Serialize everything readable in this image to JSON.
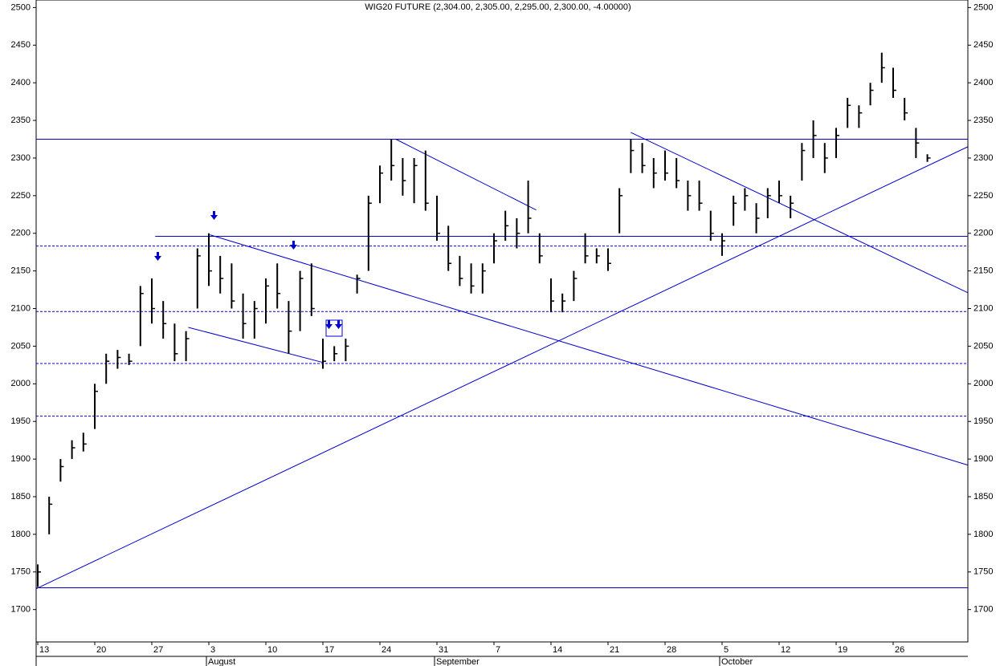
{
  "chart_data": {
    "type": "ohlc",
    "title": "WIG20 FUTURE (2,304.00, 2,305.00, 2,295.00, 2,300.00, -4.00000)",
    "color": "#000000",
    "line_color": "#0000cc",
    "x": [
      0,
      1,
      2,
      3,
      4,
      5,
      6,
      7,
      8,
      9,
      10,
      11,
      12,
      13,
      14,
      15,
      16,
      17,
      18,
      19,
      20,
      21,
      22,
      23,
      24,
      25,
      26,
      27,
      28,
      29,
      30,
      31,
      32,
      33,
      34,
      35,
      36,
      37,
      38,
      39,
      40,
      41,
      42,
      43,
      44,
      45,
      46,
      47,
      48,
      49,
      50,
      51,
      52,
      53,
      54,
      55,
      56,
      57,
      58,
      59,
      60,
      61,
      62,
      63,
      64,
      65,
      66,
      67,
      68,
      69,
      70,
      71,
      72,
      73,
      74,
      75,
      76,
      77,
      78
    ],
    "high": [
      1760,
      1850,
      1900,
      1925,
      1935,
      2000,
      2040,
      2045,
      2040,
      2130,
      2140,
      2110,
      2080,
      2070,
      2180,
      2200,
      2170,
      2160,
      2120,
      2110,
      2140,
      2160,
      2110,
      2150,
      2160,
      2060,
      2050,
      2060,
      2145,
      2250,
      2290,
      2325,
      2300,
      2300,
      2310,
      2250,
      2210,
      2170,
      2160,
      2160,
      2200,
      2230,
      2220,
      2270,
      2200,
      2140,
      2120,
      2150,
      2200,
      2180,
      2180,
      2260,
      2325,
      2320,
      2300,
      2310,
      2300,
      2270,
      2270,
      2230,
      2200,
      2250,
      2260,
      2240,
      2260,
      2270,
      2250,
      2320,
      2350,
      2320,
      2340,
      2380,
      2370,
      2400,
      2440,
      2420,
      2380,
      2340,
      2305
    ],
    "low": [
      1730,
      1800,
      1870,
      1900,
      1910,
      1940,
      2000,
      2020,
      2025,
      2050,
      2080,
      2060,
      2030,
      2030,
      2100,
      2130,
      2120,
      2100,
      2060,
      2060,
      2080,
      2100,
      2040,
      2070,
      2090,
      2020,
      2030,
      2030,
      2120,
      2150,
      2240,
      2270,
      2250,
      2240,
      2230,
      2190,
      2150,
      2130,
      2120,
      2120,
      2160,
      2190,
      2180,
      2200,
      2160,
      2095,
      2095,
      2110,
      2160,
      2160,
      2150,
      2200,
      2280,
      2280,
      2260,
      2270,
      2260,
      2230,
      2230,
      2190,
      2170,
      2210,
      2230,
      2200,
      2220,
      2240,
      2220,
      2270,
      2300,
      2280,
      2300,
      2340,
      2340,
      2370,
      2400,
      2380,
      2350,
      2300,
      2295
    ],
    "close": [
      1750,
      1840,
      1890,
      1915,
      1920,
      1990,
      2030,
      2035,
      2030,
      2120,
      2100,
      2080,
      2040,
      2060,
      2170,
      2150,
      2140,
      2110,
      2080,
      2100,
      2130,
      2120,
      2070,
      2140,
      2100,
      2030,
      2040,
      2050,
      2140,
      2240,
      2280,
      2290,
      2270,
      2290,
      2240,
      2200,
      2160,
      2140,
      2130,
      2150,
      2190,
      2210,
      2200,
      2220,
      2170,
      2110,
      2110,
      2140,
      2170,
      2170,
      2160,
      2250,
      2310,
      2290,
      2280,
      2280,
      2270,
      2250,
      2240,
      2200,
      2190,
      2240,
      2250,
      2220,
      2250,
      2250,
      2240,
      2310,
      2330,
      2300,
      2330,
      2370,
      2360,
      2390,
      2420,
      2390,
      2360,
      2320,
      2300
    ],
    "xlim": [
      -0.14,
      81.55
    ],
    "ylim": [
      1657,
      2510
    ],
    "xticks": [
      {
        "value": 0,
        "label": "13"
      },
      {
        "value": 5,
        "label": "20"
      },
      {
        "value": 10,
        "label": "27"
      },
      {
        "value": 15,
        "label": "3"
      },
      {
        "value": 20,
        "label": "10"
      },
      {
        "value": 25,
        "label": "17"
      },
      {
        "value": 30,
        "label": "24"
      },
      {
        "value": 35,
        "label": "31"
      },
      {
        "value": 40,
        "label": "7"
      },
      {
        "value": 45,
        "label": "14"
      },
      {
        "value": 50,
        "label": "21"
      },
      {
        "value": 55,
        "label": "28"
      },
      {
        "value": 60,
        "label": "5"
      },
      {
        "value": 65,
        "label": "12"
      },
      {
        "value": 70,
        "label": "19"
      },
      {
        "value": 75,
        "label": "26"
      }
    ],
    "month_ticks": [
      {
        "value": 15,
        "label": "August"
      },
      {
        "value": 35,
        "label": "September"
      },
      {
        "value": 60,
        "label": "October"
      }
    ],
    "yticks": [
      1700,
      1750,
      1800,
      1850,
      1900,
      1950,
      2000,
      2050,
      2100,
      2150,
      2200,
      2250,
      2300,
      2350,
      2400,
      2450,
      2500
    ],
    "levels": [
      {
        "value": 2325,
        "style": "solid"
      },
      {
        "value": 1729,
        "style": "solid"
      },
      {
        "value": 2183,
        "style": "dotted"
      },
      {
        "value": 2096,
        "style": "dotted"
      },
      {
        "value": 2027,
        "style": "dotted"
      },
      {
        "value": 1957,
        "style": "dotted"
      }
    ],
    "trendlines": [
      {
        "x": [
          10.3,
          81.55
        ],
        "y": [
          2196,
          2196
        ]
      },
      {
        "x": [
          -0.1,
          81.55
        ],
        "y": [
          1728,
          2315
        ]
      },
      {
        "x": [
          15.1,
          81.55
        ],
        "y": [
          2198,
          1892
        ]
      },
      {
        "x": [
          13.2,
          25.1
        ],
        "y": [
          2075,
          2028
        ]
      },
      {
        "x": [
          31.4,
          43.7
        ],
        "y": [
          2325,
          2231
        ]
      },
      {
        "x": [
          52,
          81.55
        ],
        "y": [
          2334,
          2121
        ]
      }
    ]
  }
}
